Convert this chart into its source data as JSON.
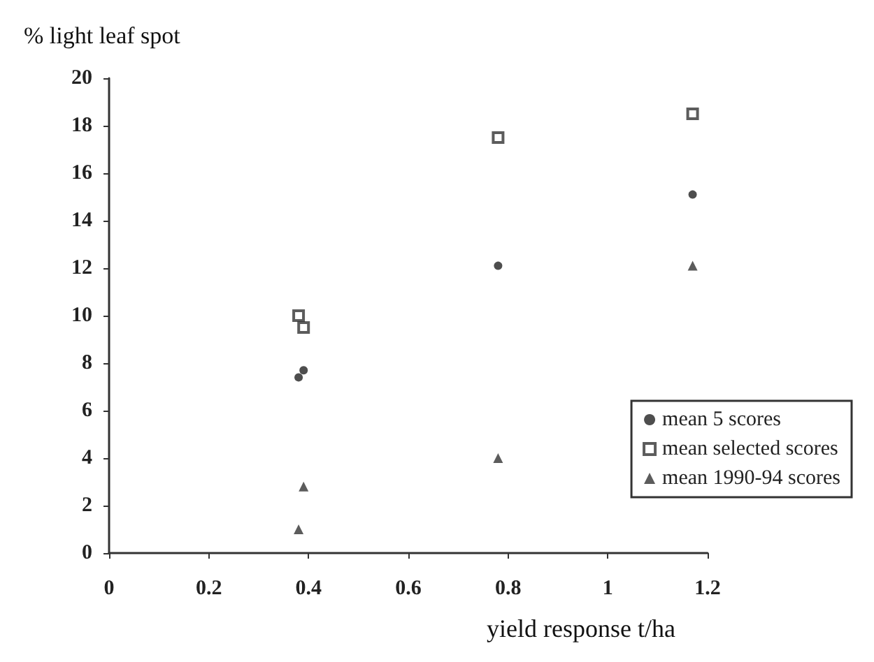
{
  "chart_data": {
    "type": "scatter",
    "ylabel": "% light leaf spot",
    "xlabel": "yield response t/ha",
    "xlim": [
      0,
      1.2
    ],
    "xticks": [
      0,
      0.2,
      0.4,
      0.6,
      0.8,
      1,
      1.2
    ],
    "ylim": [
      0,
      20
    ],
    "yticks": [
      0,
      2,
      4,
      6,
      8,
      10,
      12,
      14,
      16,
      18,
      20
    ],
    "grid": false,
    "legend": "bottom right",
    "series": [
      {
        "name": "mean 5 scores",
        "color": "#222222",
        "marker": "circle",
        "x": [
          0.38,
          0.39,
          0.78,
          1.17
        ],
        "values": [
          7.4,
          7.7,
          12.1,
          15.1
        ]
      },
      {
        "name": "mean selected scores",
        "color": "#333333",
        "marker": "square",
        "x": [
          0.38,
          0.39,
          0.78,
          1.17
        ],
        "values": [
          10.0,
          9.5,
          17.5,
          18.5
        ]
      },
      {
        "name": "mean 1990-94 scores",
        "color": "#333333",
        "marker": "triangle",
        "x": [
          0.38,
          0.39,
          0.78,
          1.17
        ],
        "values": [
          1.0,
          2.8,
          4.0,
          12.1
        ]
      }
    ]
  }
}
